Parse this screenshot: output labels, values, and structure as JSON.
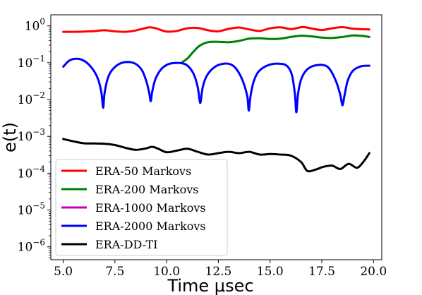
{
  "chart_data": {
    "type": "line",
    "xlabel": "Time μsec",
    "ylabel": "e(t)",
    "xlim": [
      4.4,
      20.4
    ],
    "ylim_log10": [
      -6.35,
      0.3
    ],
    "yscale": "log",
    "x_ticks": [
      5.0,
      7.5,
      10.0,
      12.5,
      15.0,
      17.5,
      20.0
    ],
    "x_tick_labels": [
      "5.0",
      "7.5",
      "10.0",
      "12.5",
      "15.0",
      "17.5",
      "20.0"
    ],
    "y_ticks_exp": [
      0,
      -1,
      -2,
      -3,
      -4,
      -5,
      -6
    ],
    "y_tick_labels": [
      {
        "base": "10",
        "exp": "0"
      },
      {
        "base": "10",
        "exp": "−1"
      },
      {
        "base": "10",
        "exp": "−2"
      },
      {
        "base": "10",
        "exp": "−3"
      },
      {
        "base": "10",
        "exp": "−4"
      },
      {
        "base": "10",
        "exp": "−5"
      },
      {
        "base": "10",
        "exp": "−6"
      }
    ],
    "legend_position": "lower-left",
    "series": [
      {
        "name": "ERA-50 Markovs",
        "color": "#ff0000",
        "x": [
          5.0,
          5.5,
          6.0,
          6.5,
          7.0,
          7.5,
          8.0,
          8.5,
          9.0,
          9.2,
          9.5,
          10.0,
          10.5,
          11.0,
          11.5,
          12.0,
          12.5,
          13.0,
          13.5,
          14.0,
          14.5,
          15.0,
          15.5,
          16.0,
          16.3,
          16.6,
          17.0,
          17.5,
          18.0,
          18.5,
          19.0,
          19.5,
          19.8
        ],
        "y": [
          0.69,
          0.69,
          0.7,
          0.72,
          0.76,
          0.71,
          0.69,
          0.75,
          0.88,
          0.91,
          0.85,
          0.7,
          0.73,
          0.86,
          0.88,
          0.76,
          0.71,
          0.83,
          0.9,
          0.8,
          0.73,
          0.86,
          0.91,
          0.82,
          0.87,
          0.93,
          0.85,
          0.77,
          0.86,
          0.92,
          0.84,
          0.81,
          0.8
        ]
      },
      {
        "name": "ERA-200 Markovs",
        "color": "#008000",
        "x": [
          10.7,
          11.0,
          11.3,
          11.6,
          12.0,
          12.5,
          13.0,
          13.5,
          14.0,
          14.5,
          15.0,
          15.5,
          16.0,
          16.5,
          17.0,
          17.5,
          18.0,
          18.5,
          19.0,
          19.5,
          19.8
        ],
        "y": [
          0.098,
          0.13,
          0.2,
          0.29,
          0.36,
          0.37,
          0.36,
          0.39,
          0.45,
          0.46,
          0.44,
          0.45,
          0.5,
          0.54,
          0.52,
          0.48,
          0.47,
          0.5,
          0.55,
          0.53,
          0.5
        ]
      },
      {
        "name": "ERA-1000 Markovs",
        "color": "#bf00bf",
        "x": [],
        "y": []
      },
      {
        "name": "ERA-2000 Markovs",
        "color": "#0000ff",
        "x": [
          5.0,
          5.3,
          5.6,
          5.9,
          6.2,
          6.5,
          6.7,
          6.85,
          6.93,
          7.0,
          7.15,
          7.35,
          7.7,
          8.1,
          8.5,
          8.8,
          9.0,
          9.15,
          9.23,
          9.3,
          9.45,
          9.7,
          10.0,
          10.3,
          10.7,
          11.0,
          11.3,
          11.5,
          11.6,
          11.65,
          11.75,
          11.95,
          12.3,
          12.7,
          13.1,
          13.4,
          13.7,
          13.9,
          13.97,
          14.05,
          14.2,
          14.45,
          14.9,
          15.4,
          15.8,
          16.05,
          16.2,
          16.27,
          16.35,
          16.5,
          16.75,
          17.1,
          17.6,
          17.9,
          18.2,
          18.4,
          18.5,
          18.6,
          18.75,
          19.0,
          19.4,
          19.8
        ],
        "y": [
          0.078,
          0.115,
          0.128,
          0.12,
          0.093,
          0.058,
          0.034,
          0.015,
          0.006,
          0.015,
          0.037,
          0.062,
          0.092,
          0.105,
          0.093,
          0.063,
          0.034,
          0.016,
          0.009,
          0.016,
          0.035,
          0.063,
          0.087,
          0.097,
          0.097,
          0.084,
          0.05,
          0.022,
          0.009,
          0.009,
          0.022,
          0.045,
          0.075,
          0.093,
          0.09,
          0.064,
          0.03,
          0.012,
          0.005,
          0.012,
          0.03,
          0.058,
          0.085,
          0.094,
          0.083,
          0.048,
          0.014,
          0.0045,
          0.014,
          0.035,
          0.062,
          0.082,
          0.086,
          0.065,
          0.03,
          0.013,
          0.007,
          0.013,
          0.032,
          0.06,
          0.08,
          0.083
        ]
      },
      {
        "name": "ERA-DD-TI",
        "color": "#000000",
        "x": [
          5.0,
          5.5,
          6.0,
          6.5,
          7.0,
          7.5,
          8.0,
          8.5,
          9.0,
          9.3,
          9.6,
          10.0,
          10.5,
          11.0,
          11.5,
          12.0,
          12.5,
          13.0,
          13.5,
          14.0,
          14.5,
          15.0,
          15.5,
          16.0,
          16.5,
          16.8,
          17.2,
          17.6,
          18.0,
          18.4,
          18.8,
          19.2,
          19.5,
          19.8
        ],
        "y": [
          0.00085,
          0.00073,
          0.00065,
          0.00064,
          0.00063,
          0.00058,
          0.00049,
          0.00043,
          0.00047,
          0.00052,
          0.00046,
          0.00037,
          0.00041,
          0.00046,
          0.00038,
          0.00032,
          0.00035,
          0.00038,
          0.00035,
          0.00038,
          0.00032,
          0.00033,
          0.00032,
          0.0003,
          0.0002,
          0.000115,
          0.000125,
          0.00015,
          0.00016,
          0.00013,
          0.00018,
          0.00014,
          0.0002,
          0.00035
        ]
      }
    ]
  }
}
